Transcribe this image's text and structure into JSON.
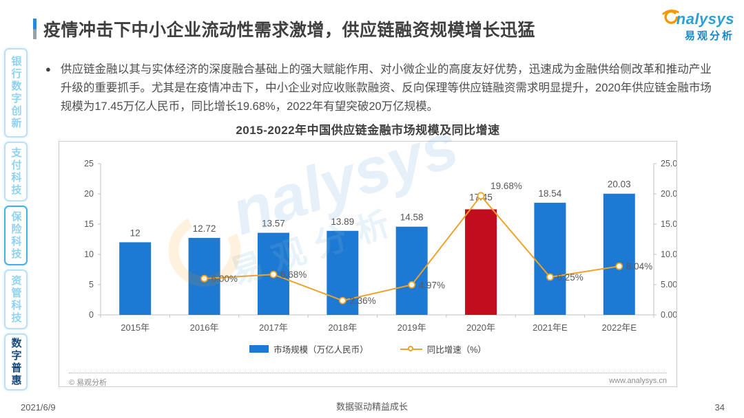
{
  "header": {
    "title": "疫情冲击下中小企业流动性需求激增，供应链融资规模增长迅猛",
    "logo": {
      "brand": "nalysys",
      "brand_cn": "易观分析"
    }
  },
  "sidebar": {
    "items": [
      {
        "label": "银行数字创新"
      },
      {
        "label": "支付科技"
      },
      {
        "label": "保险科技"
      },
      {
        "label": "资管科技"
      },
      {
        "label": "数字普惠"
      }
    ]
  },
  "body": {
    "bullet": "●",
    "bullet_text": "供应链金融以其与实体经济的深度融合基础上的强大赋能作用、对小微企业的高度友好优势，迅速成为金融供给侧改革和推动产业升级的重要抓手。尤其是在疫情冲击下，中小企业对应收账款融资、反向保理等供应链融资需求明显提升，2020年供应链金融市场规模为17.45万亿人民币，同比增长19.68%，2022年有望突破20万亿规模。"
  },
  "chart": {
    "title": "2015-2022年中国供应链金融市场规模及同比增速",
    "source": "© 易观分析",
    "website": "www.analysys.cn"
  },
  "watermark": {
    "en": "nalysys",
    "cn": "易观分析"
  },
  "chart_data": {
    "type": "bar",
    "title": "2015-2022年中国供应链金融市场规模及同比增速",
    "categories": [
      "2015年",
      "2016年",
      "2017年",
      "2018年",
      "2019年",
      "2020年",
      "2021年E",
      "2022年E"
    ],
    "series": [
      {
        "name": "市场规模（万亿人民币）",
        "type": "bar",
        "values": [
          12,
          12.72,
          13.57,
          13.89,
          14.58,
          17.45,
          18.54,
          20.03
        ],
        "value_labels": [
          "12",
          "12.72",
          "13.57",
          "13.89",
          "14.58",
          "17.45",
          "18.54",
          "20.03"
        ]
      },
      {
        "name": "同比增速（%）",
        "type": "line",
        "values": [
          null,
          6.0,
          6.68,
          2.36,
          4.97,
          19.68,
          6.25,
          8.04
        ],
        "value_labels": [
          null,
          "6.00%",
          "6.68%",
          "2.36%",
          "4.97%",
          "19.68%",
          "6.25%",
          "8.04%"
        ]
      }
    ],
    "left_axis": {
      "ticks": [
        0,
        5,
        10,
        15,
        20,
        25
      ],
      "max": 25
    },
    "right_axis": {
      "ticks": [
        "0.00%",
        "5.00%",
        "10.00%",
        "15.00%",
        "20.00%",
        "25.00%"
      ],
      "max": 25
    },
    "highlight_index": 5,
    "bar_color": "#1e79d2",
    "highlight_color": "#c20d1e",
    "line_color": "#eda22b",
    "legend_position": "bottom",
    "grid": false
  },
  "footer": {
    "date": "2021/6/9",
    "slogan": "数据驱动精益成长",
    "page": "34"
  }
}
